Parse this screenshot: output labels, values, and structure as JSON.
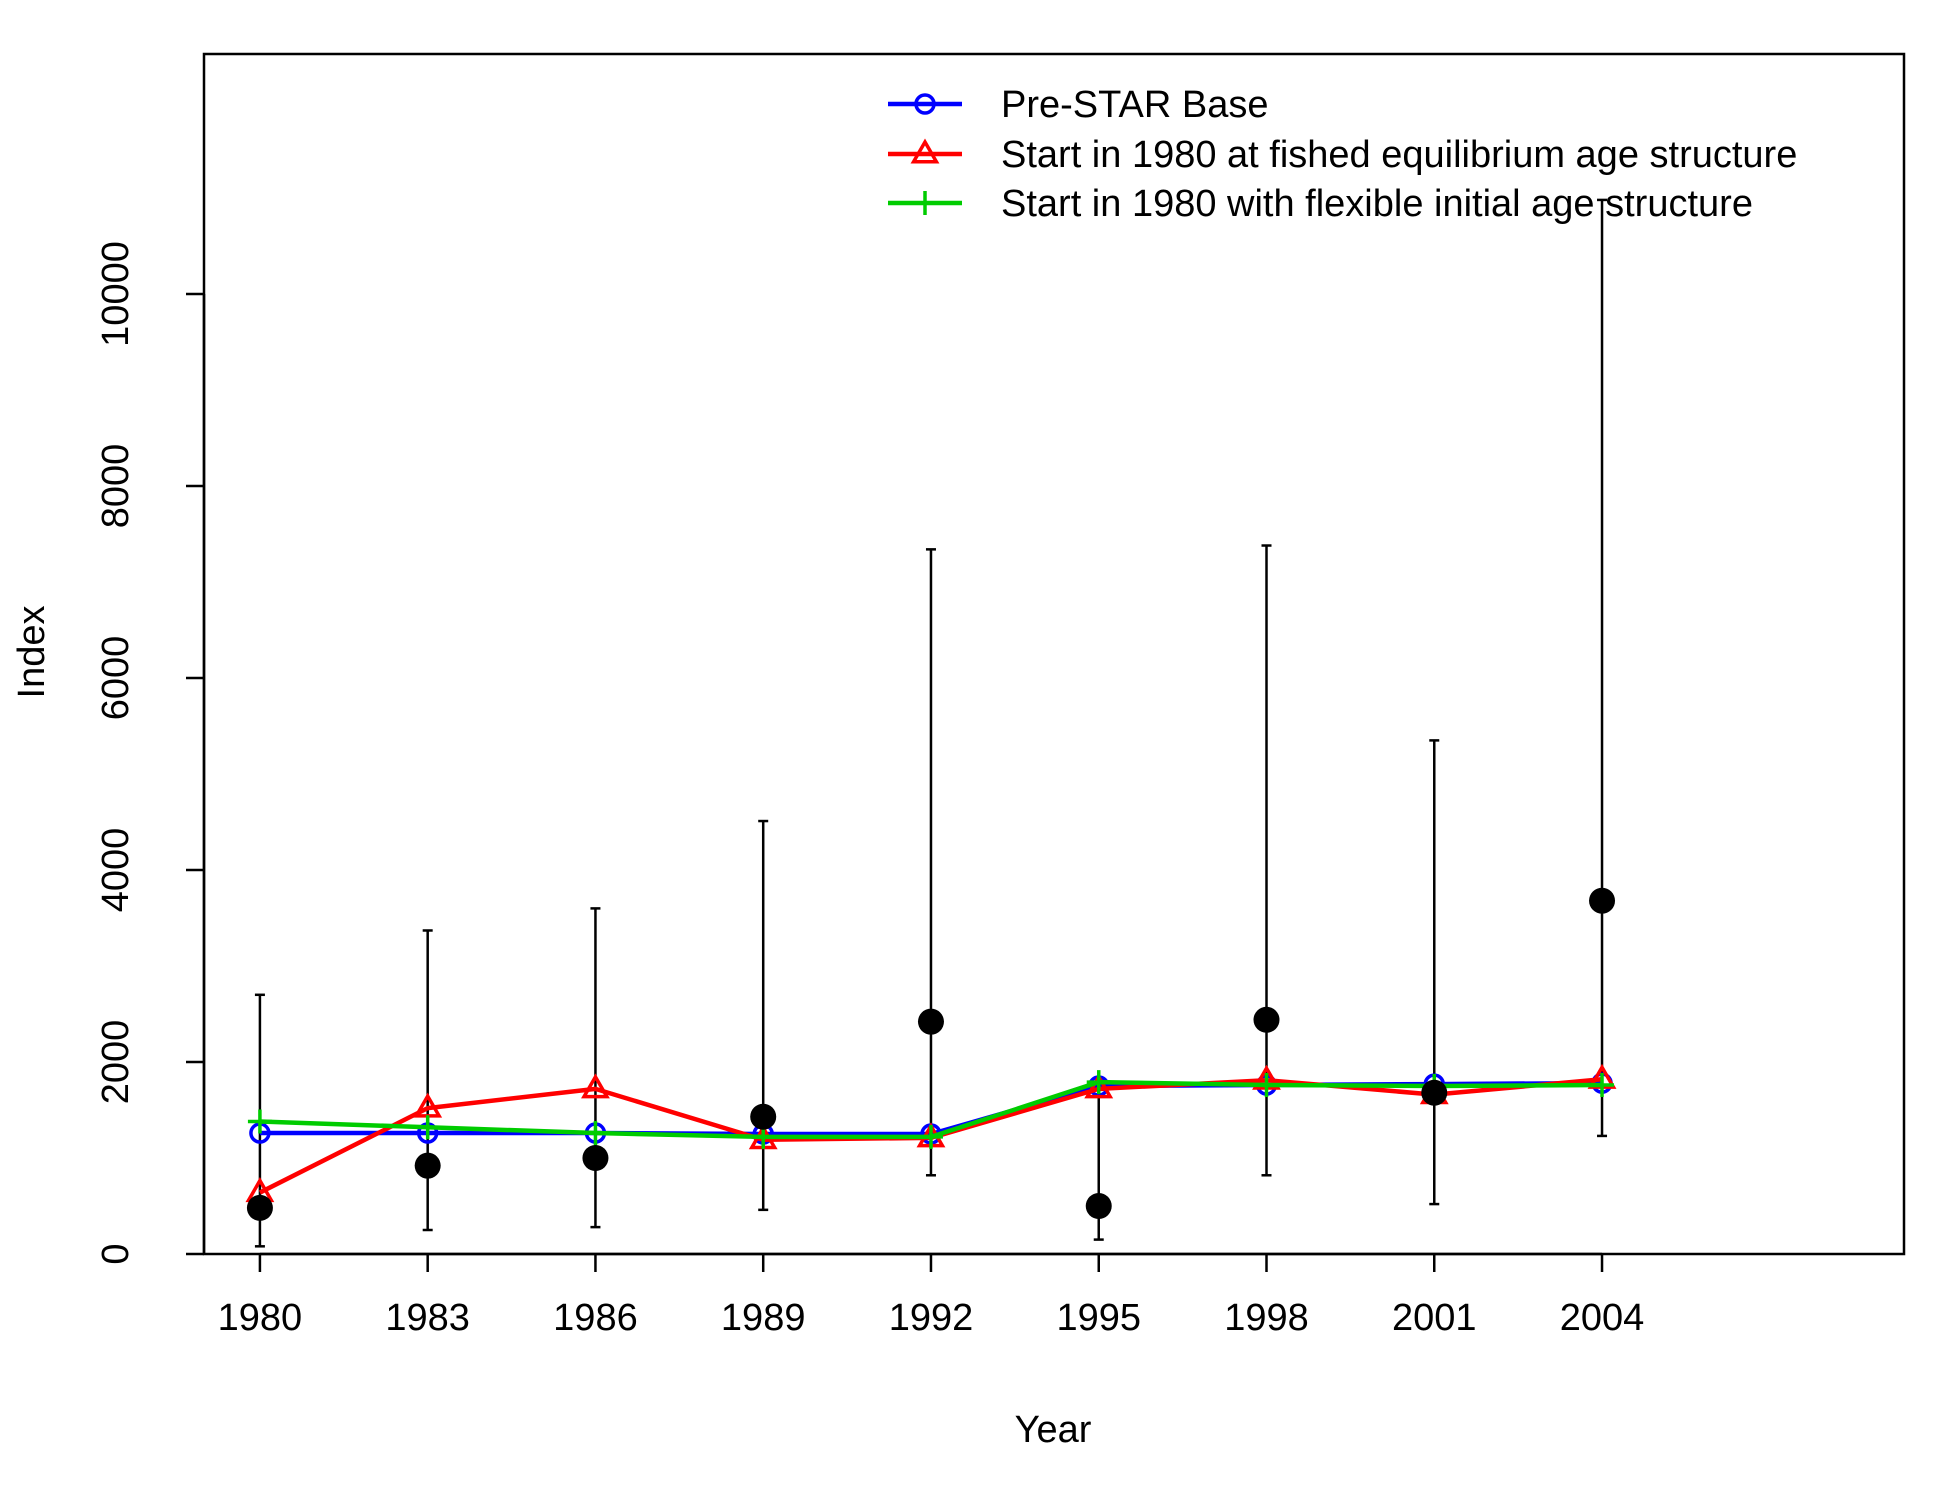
{
  "chart_data": {
    "type": "line",
    "xlabel": "Year",
    "ylabel": "Index",
    "xlim": [
      1979,
      2009.4
    ],
    "ylim": [
      0,
      12500
    ],
    "x_ticks": [
      1980,
      1983,
      1986,
      1989,
      1992,
      1995,
      1998,
      2001,
      2004
    ],
    "y_ticks": [
      0,
      2000,
      4000,
      6000,
      8000,
      10000
    ],
    "grid": false,
    "legend_position": "top-right",
    "observed": {
      "x": [
        1980,
        1983,
        1986,
        1989,
        1992,
        1995,
        1998,
        2001,
        2004
      ],
      "y": [
        480,
        920,
        1000,
        1430,
        2420,
        500,
        2440,
        1680,
        3680
      ],
      "lower": [
        80,
        250,
        280,
        460,
        820,
        150,
        820,
        520,
        1230
      ],
      "upper": [
        2700,
        3370,
        3600,
        4510,
        7340,
        1710,
        7380,
        5350,
        10980
      ]
    },
    "series": [
      {
        "name": "Pre-STAR Base",
        "color": "#0000ff",
        "marker": "circle",
        "x": [
          1980,
          1983,
          1986,
          1989,
          1992,
          1995,
          1998,
          2001,
          2004
        ],
        "y": [
          1260,
          1260,
          1260,
          1250,
          1250,
          1750,
          1760,
          1770,
          1780
        ]
      },
      {
        "name": "Start in 1980 at fished equilibrium age structure",
        "color": "#ff0000",
        "marker": "triangle",
        "x": [
          1980,
          1983,
          1986,
          1989,
          1992,
          1995,
          1998,
          2001,
          2004
        ],
        "y": [
          640,
          1520,
          1720,
          1190,
          1210,
          1720,
          1810,
          1660,
          1820
        ]
      },
      {
        "name": "Start in 1980 with flexible initial age structure",
        "color": "#00cc00",
        "marker": "plus",
        "x": [
          1980,
          1983,
          1986,
          1989,
          1992,
          1995,
          1998,
          2001,
          2004
        ],
        "y": [
          1380,
          1320,
          1260,
          1220,
          1220,
          1790,
          1760,
          1750,
          1760
        ]
      }
    ]
  }
}
